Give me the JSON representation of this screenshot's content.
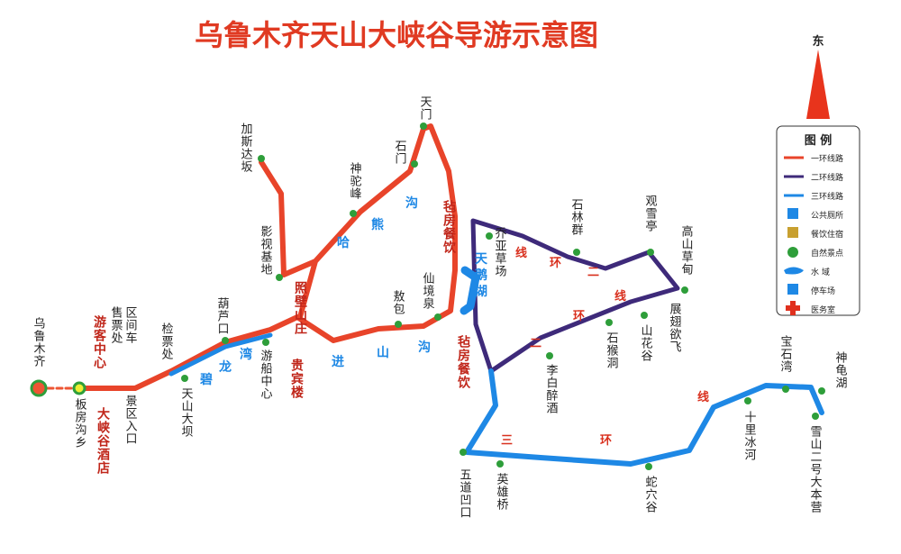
{
  "title": "乌鲁木齐天山大峡谷导游示意图",
  "compass": "东",
  "legend": {
    "title": "图 例",
    "items": [
      "一环线路",
      "二环线路",
      "三环线路",
      "公共厕所",
      "餐饮住宿",
      "自然景点",
      "水 域",
      "停车场",
      "医务室"
    ]
  },
  "places": [
    "乌鲁木齐",
    "板房沟乡",
    "售票处",
    "区间车",
    "景区入口",
    "检票处",
    "天山大坝",
    "葫芦口",
    "游船中心",
    "影视基地",
    "加斯达坂",
    "神驼峰",
    "石门",
    "天门",
    "敖包",
    "仙境泉",
    "乔亚草场",
    "石林群",
    "观雪亭",
    "高山草甸",
    "展翅欲飞",
    "山花谷",
    "石猴洞",
    "李白醉酒",
    "五道凹口",
    "英雄桥",
    "蛇穴谷",
    "十里冰河",
    "雪山二号大本营",
    "宝石湾",
    "神龟湖"
  ],
  "facilities": [
    "游客中心",
    "大峡谷酒店",
    "照壁山庄",
    "贵宾楼",
    "毡房餐饮",
    "毡房餐饮"
  ],
  "route_text": [
    "碧",
    "龙",
    "湾",
    "进",
    "山",
    "沟",
    "哈",
    "熊",
    "沟",
    "天",
    "鹅",
    "湖",
    "线",
    "环",
    "二",
    "线",
    "环",
    "二",
    "三",
    "环",
    "线"
  ]
}
